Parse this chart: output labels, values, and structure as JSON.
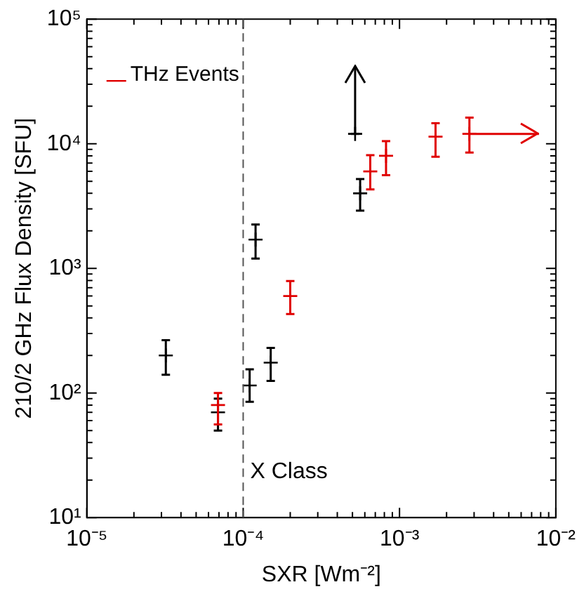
{
  "chart_data": {
    "type": "scatter",
    "xlabel": "SXR [Wm⁻²]",
    "ylabel": "210/2 GHz Flux Density [SFU]",
    "log": "xy",
    "grid": false,
    "legend": "top left",
    "marker": "cross",
    "xlim": [
      1e-05,
      0.01
    ],
    "ylim": [
      10,
      100000
    ],
    "xticks": [
      {
        "value": 1e-05,
        "label": "10⁻⁵"
      },
      {
        "value": 2e-05,
        "label": null
      },
      {
        "value": 3e-05,
        "label": null
      },
      {
        "value": 4e-05,
        "label": null
      },
      {
        "value": 5e-05,
        "label": null
      },
      {
        "value": 6e-05,
        "label": null
      },
      {
        "value": 7e-05,
        "label": null
      },
      {
        "value": 8e-05,
        "label": null
      },
      {
        "value": 9e-05,
        "label": null
      },
      {
        "value": 0.0001,
        "label": "10⁻⁴"
      },
      {
        "value": 0.0002,
        "label": null
      },
      {
        "value": 0.0003,
        "label": null
      },
      {
        "value": 0.0004,
        "label": null
      },
      {
        "value": 0.0005,
        "label": null
      },
      {
        "value": 0.0006,
        "label": null
      },
      {
        "value": 0.0007,
        "label": null
      },
      {
        "value": 0.0008,
        "label": null
      },
      {
        "value": 0.0009,
        "label": null
      },
      {
        "value": 0.001,
        "label": "10⁻³"
      },
      {
        "value": 0.002,
        "label": null
      },
      {
        "value": 0.003,
        "label": null
      },
      {
        "value": 0.004,
        "label": null
      },
      {
        "value": 0.005,
        "label": null
      },
      {
        "value": 0.006,
        "label": null
      },
      {
        "value": 0.007,
        "label": null
      },
      {
        "value": 0.008,
        "label": null
      },
      {
        "value": 0.009,
        "label": null
      },
      {
        "value": 0.01,
        "label": "10⁻²"
      }
    ],
    "yticks": [
      {
        "value": 10,
        "label": "10¹"
      },
      {
        "value": 20,
        "label": null
      },
      {
        "value": 30,
        "label": null
      },
      {
        "value": 40,
        "label": null
      },
      {
        "value": 50,
        "label": null
      },
      {
        "value": 60,
        "label": null
      },
      {
        "value": 70,
        "label": null
      },
      {
        "value": 80,
        "label": null
      },
      {
        "value": 90,
        "label": null
      },
      {
        "value": 100,
        "label": "10²"
      },
      {
        "value": 200,
        "label": null
      },
      {
        "value": 300,
        "label": null
      },
      {
        "value": 400,
        "label": null
      },
      {
        "value": 500,
        "label": null
      },
      {
        "value": 600,
        "label": null
      },
      {
        "value": 700,
        "label": null
      },
      {
        "value": 800,
        "label": null
      },
      {
        "value": 900,
        "label": null
      },
      {
        "value": 1000,
        "label": "10³"
      },
      {
        "value": 2000,
        "label": null
      },
      {
        "value": 3000,
        "label": null
      },
      {
        "value": 4000,
        "label": null
      },
      {
        "value": 5000,
        "label": null
      },
      {
        "value": 6000,
        "label": null
      },
      {
        "value": 7000,
        "label": null
      },
      {
        "value": 8000,
        "label": null
      },
      {
        "value": 9000,
        "label": null
      },
      {
        "value": 10000,
        "label": "10⁴"
      },
      {
        "value": 20000,
        "label": null
      },
      {
        "value": 30000,
        "label": null
      },
      {
        "value": 40000,
        "label": null
      },
      {
        "value": 50000,
        "label": null
      },
      {
        "value": 60000,
        "label": null
      },
      {
        "value": 70000,
        "label": null
      },
      {
        "value": 80000,
        "label": null
      },
      {
        "value": 90000,
        "label": null
      },
      {
        "value": 100000,
        "label": "10⁵"
      }
    ],
    "series": [
      {
        "color": "#000000",
        "x": [
          3.2e-05,
          6.9e-05,
          0.00011,
          0.00015,
          0.00012,
          0.00056,
          0.00052
        ],
        "values": [
          200,
          70,
          115,
          175,
          1700,
          4000,
          12000
        ],
        "errors": [
          [
            140,
            265
          ],
          [
            50,
            90
          ],
          [
            85,
            155
          ],
          [
            125,
            230
          ],
          [
            1200,
            2250
          ],
          [
            2900,
            5200
          ],
          [
            12000,
            42000
          ]
        ]
      },
      {
        "name": "THz Events",
        "color": "#e00000",
        "x": [
          6.9e-05,
          0.0002,
          0.00065,
          0.00082,
          0.0017,
          0.0028
        ],
        "values": [
          80,
          600,
          6000,
          8000,
          11400,
          12000
        ],
        "errors": [
          [
            56,
            100
          ],
          [
            430,
            790
          ],
          [
            4300,
            8100
          ],
          [
            5600,
            10500
          ],
          [
            7850,
            14600
          ],
          [
            8500,
            16200
          ]
        ],
        "xerrors": [
          null,
          null,
          null,
          null,
          null,
          [
            0.0028,
            0.0078
          ]
        ]
      }
    ],
    "ref_lines": [
      {
        "axis": "x",
        "value": 0.0001,
        "label": "X Class",
        "line_style": "dashed",
        "color": "#555555"
      }
    ]
  }
}
